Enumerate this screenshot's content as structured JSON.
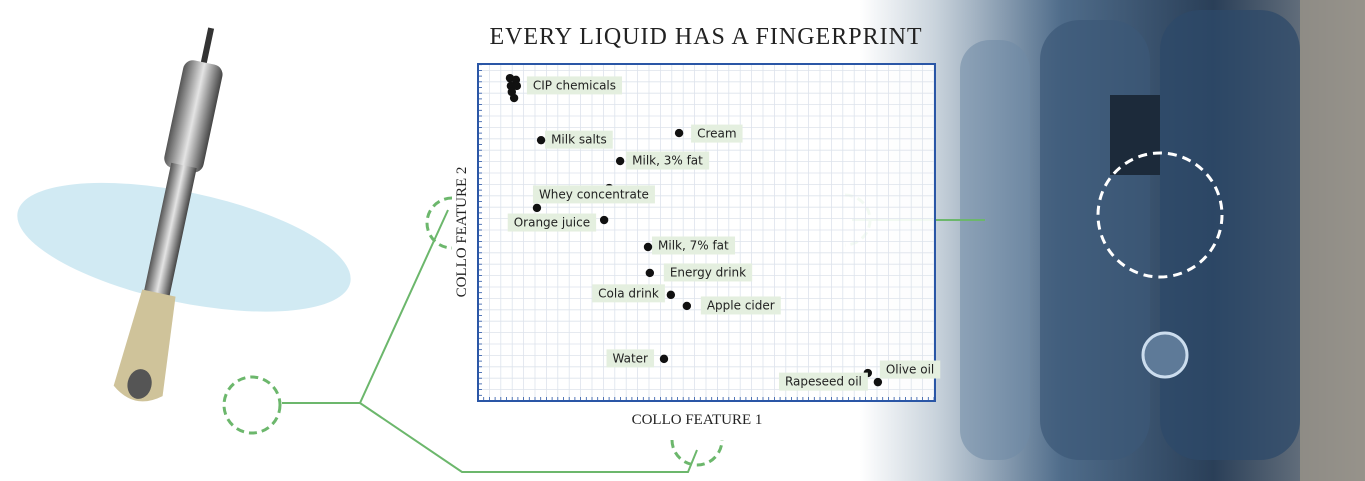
{
  "chart_data": {
    "type": "scatter",
    "title": "EVERY LIQUID HAS A FINGERPRINT",
    "x_label": "COLLO FEATURE 1",
    "y_label": "COLLO FEATURE 2",
    "xlim": [
      0,
      100
    ],
    "ylim": [
      0,
      100
    ],
    "grid": true,
    "color": "#111111",
    "frame_color": "#2a56a6",
    "x": [
      7.0,
      8.3,
      7.2,
      8.5,
      7.4,
      7.9,
      13.8,
      44.0,
      31.1,
      28.7,
      12.9,
      27.6,
      37.2,
      37.6,
      42.2,
      45.7,
      40.7,
      85.3,
      87.5
    ],
    "y": [
      95.8,
      95.3,
      93.5,
      93.5,
      91.7,
      89.9,
      77.4,
      79.5,
      71.2,
      63.2,
      57.3,
      53.7,
      45.7,
      38.0,
      31.5,
      28.2,
      12.5,
      8.3,
      5.6
    ],
    "labels": [
      null,
      null,
      "CIP chemicals",
      null,
      null,
      null,
      "Milk salts",
      "Cream",
      "Milk, 3% fat",
      null,
      "Whey concentrate",
      "Orange juice",
      "Milk, 7% fat",
      "Energy drink",
      "Cola drink",
      "Apple cider",
      "Water",
      "Olive oil",
      "Rapeseed oil"
    ]
  }
}
